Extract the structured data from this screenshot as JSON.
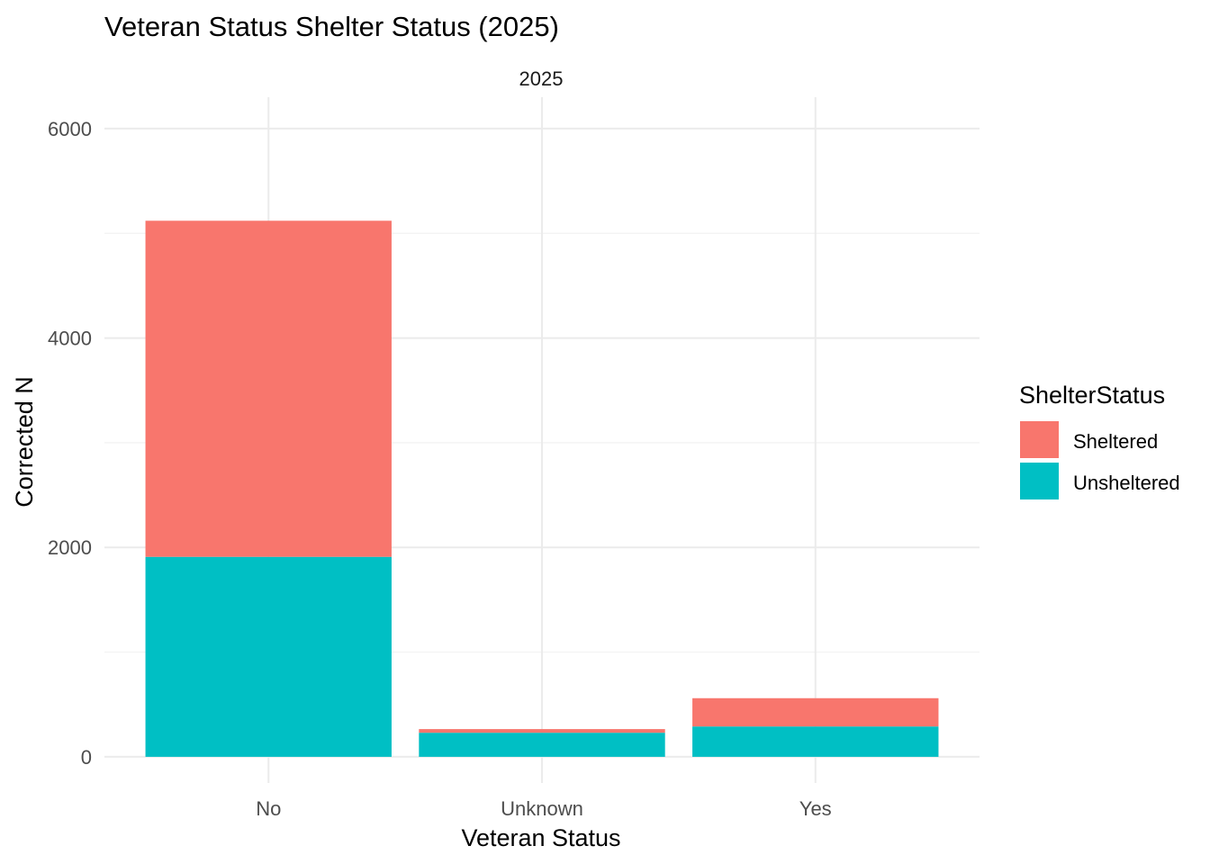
{
  "chart_data": {
    "type": "bar",
    "stacked": true,
    "title": "Veteran Status Shelter Status (2025)",
    "facet_label": "2025",
    "xlabel": "Veteran Status",
    "ylabel": "Corrected N",
    "categories": [
      "No",
      "Unknown",
      "Yes"
    ],
    "series": [
      {
        "name": "Unsheltered",
        "color": "#00BFC4",
        "values": [
          1910,
          230,
          290
        ]
      },
      {
        "name": "Sheltered",
        "color": "#F8766D",
        "values": [
          3210,
          35,
          270
        ]
      }
    ],
    "ylim": [
      -250,
      6300
    ],
    "yticks": [
      "0",
      "2000",
      "4000",
      "6000"
    ],
    "ytick_values": [
      0,
      2000,
      4000,
      6000
    ],
    "minor_grid_values": [
      1000,
      3000,
      5000
    ],
    "grid": true,
    "legend": {
      "title": "ShelterStatus",
      "position": "right",
      "items": [
        {
          "label": "Sheltered",
          "color": "#F8766D"
        },
        {
          "label": "Unsheltered",
          "color": "#00BFC4"
        }
      ]
    }
  }
}
